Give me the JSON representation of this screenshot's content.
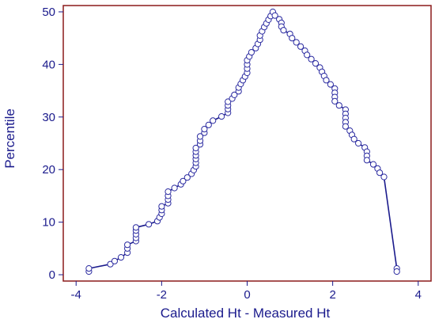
{
  "chart_data": {
    "type": "line",
    "title": "",
    "xlabel": "Calculated Ht - Measured Ht",
    "ylabel": "Percentile",
    "xlim": [
      -4.3,
      4.3
    ],
    "ylim": [
      -1.2,
      51.2
    ],
    "xticks": [
      -4,
      -2,
      0,
      2,
      4
    ],
    "yticks": [
      0,
      10,
      20,
      30,
      40,
      50
    ],
    "grid": false,
    "legend": "none",
    "colors": {
      "line": "#1a1a8c",
      "marker_edge": "#2a2aa0",
      "marker_fill": "#ffffff",
      "frame": "#8b1a1a"
    },
    "series": [
      {
        "x": [
          -3.7,
          -3.7,
          -3.2,
          -3.1,
          -2.95,
          -2.8,
          -2.8,
          -2.8,
          -2.6,
          -2.6,
          -2.6,
          -2.6,
          -2.6,
          -2.3,
          -2.1,
          -2.05,
          -2.0,
          -2.0,
          -2.0,
          -1.85,
          -1.85,
          -1.85,
          -1.85,
          -1.7,
          -1.55,
          -1.5,
          -1.4,
          -1.3,
          -1.25,
          -1.2,
          -1.2,
          -1.2,
          -1.2,
          -1.2,
          -1.2,
          -1.1,
          -1.1,
          -1.1,
          -1.0,
          -1.0,
          -0.9,
          -0.8,
          -0.6,
          -0.45,
          -0.45,
          -0.45,
          -0.45,
          -0.35,
          -0.3,
          -0.2,
          -0.2,
          -0.15,
          -0.1,
          -0.05,
          0.0,
          0.0,
          0.0,
          0.0,
          0.05,
          0.1,
          0.2,
          0.25,
          0.3,
          0.3,
          0.35,
          0.4,
          0.45,
          0.5,
          0.55,
          0.6,
          0.65,
          0.75,
          0.8,
          0.8,
          0.85,
          1.0,
          1.05,
          1.15,
          1.25,
          1.35,
          1.4,
          1.5,
          1.6,
          1.7,
          1.75,
          1.8,
          1.85,
          1.95,
          2.05,
          2.05,
          2.05,
          2.05,
          2.15,
          2.3,
          2.3,
          2.3,
          2.3,
          2.3,
          2.4,
          2.45,
          2.5,
          2.6,
          2.75,
          2.8,
          2.8,
          2.8,
          2.95,
          3.05,
          3.1,
          3.2,
          3.5,
          3.5
        ],
        "y": [
          0.6,
          1.2,
          2.0,
          2.6,
          3.3,
          4.2,
          5.0,
          5.7,
          6.4,
          7.0,
          7.7,
          8.4,
          9.0,
          9.6,
          10.2,
          10.9,
          11.6,
          12.3,
          13.0,
          13.6,
          14.3,
          15.0,
          15.8,
          16.5,
          17.2,
          17.8,
          18.5,
          19.2,
          19.9,
          20.6,
          21.3,
          22.0,
          22.7,
          23.4,
          24.1,
          24.8,
          25.5,
          26.3,
          27.0,
          27.7,
          28.5,
          29.3,
          30.1,
          30.8,
          31.5,
          32.2,
          32.9,
          33.5,
          34.2,
          34.9,
          35.6,
          36.3,
          37.0,
          37.7,
          38.4,
          39.2,
          40.0,
          40.8,
          41.5,
          42.3,
          43.1,
          43.9,
          44.7,
          45.5,
          46.3,
          47.1,
          47.8,
          48.5,
          49.2,
          50.0,
          49.3,
          48.6,
          47.9,
          47.2,
          46.5,
          45.8,
          45.0,
          44.2,
          43.4,
          42.6,
          41.8,
          41.0,
          40.2,
          39.4,
          38.6,
          37.8,
          37.0,
          36.2,
          35.4,
          34.6,
          33.8,
          33.0,
          32.2,
          31.4,
          30.6,
          29.8,
          29.0,
          28.2,
          27.4,
          26.6,
          25.8,
          25.0,
          24.2,
          23.4,
          22.6,
          21.8,
          21.0,
          20.2,
          19.4,
          18.6,
          1.2,
          0.6
        ]
      }
    ]
  }
}
